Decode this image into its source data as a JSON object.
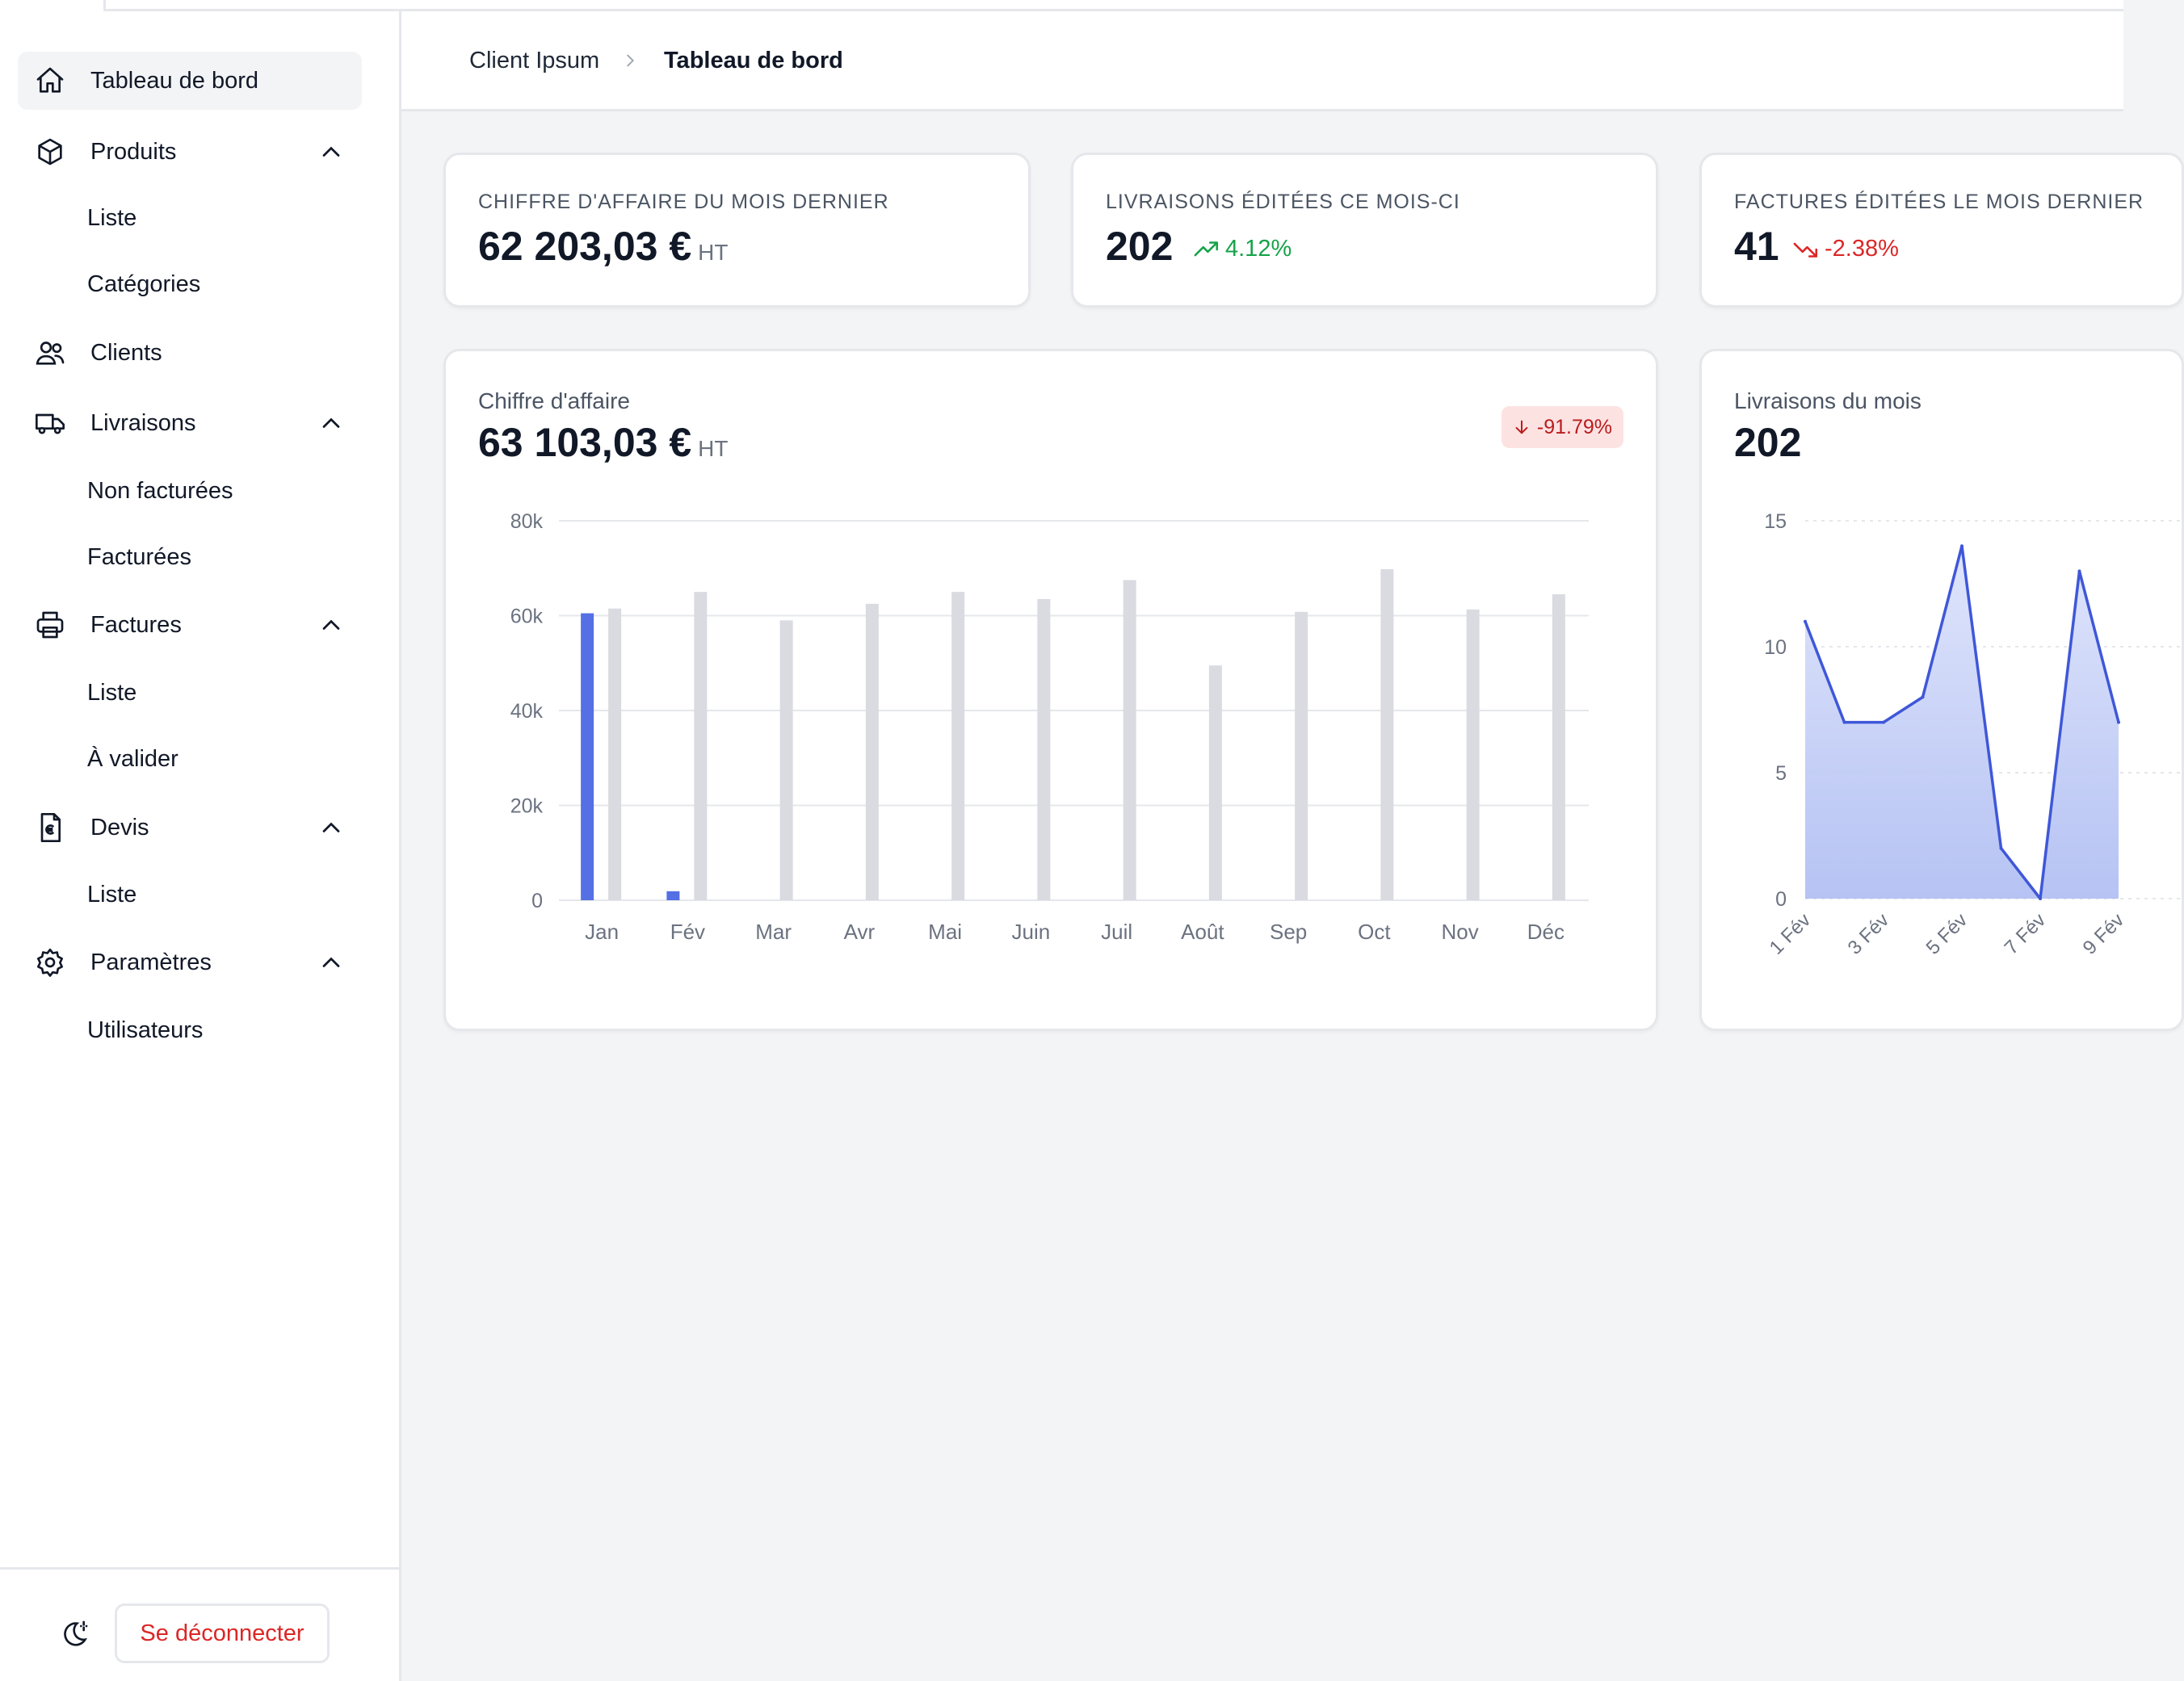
{
  "breadcrumb": {
    "client": "Client Ipsum",
    "current": "Tableau de bord"
  },
  "sidebar": {
    "dashboard": "Tableau de bord",
    "produits": {
      "label": "Produits",
      "items": [
        "Liste",
        "Catégories"
      ]
    },
    "clients": "Clients",
    "livraisons": {
      "label": "Livraisons",
      "items": [
        "Non facturées",
        "Facturées"
      ]
    },
    "factures": {
      "label": "Factures",
      "items": [
        "Liste",
        "À valider"
      ]
    },
    "devis": {
      "label": "Devis",
      "items": [
        "Liste"
      ]
    },
    "parametres": {
      "label": "Paramètres",
      "items": [
        "Utilisateurs"
      ]
    },
    "logout": "Se déconnecter"
  },
  "stats": [
    {
      "title": "CHIFFRE D'AFFAIRE DU MOIS DERNIER",
      "value": "62 203,03 €",
      "unit": "HT"
    },
    {
      "title": "LIVRAISONS ÉDITÉES CE MOIS-CI",
      "value": "202",
      "trend": "4.12%",
      "direction": "up"
    },
    {
      "title": "FACTURES ÉDITÉES LE MOIS DERNIER",
      "value": "41",
      "trend": "-2.38%",
      "direction": "down"
    }
  ],
  "revenue_card": {
    "title": "Chiffre d'affaire",
    "value": "63 103,03 €",
    "unit": "HT",
    "badge": "-91.79%"
  },
  "deliveries_card": {
    "title": "Livraisons du mois",
    "value": "202"
  },
  "colors": {
    "primary": "#5470e4",
    "secondary_bar": "#d9dbe1",
    "up": "#16a34a",
    "down": "#dc2626"
  },
  "chart_data": [
    {
      "type": "bar",
      "title": "Chiffre d'affaire",
      "categories": [
        "Jan",
        "Fév",
        "Mar",
        "Avr",
        "Mai",
        "Juin",
        "Juil",
        "Août",
        "Sep",
        "Oct",
        "Nov",
        "Déc"
      ],
      "ylim": [
        0,
        80000
      ],
      "yticks": [
        0,
        20000,
        40000,
        60000,
        80000
      ],
      "ytick_labels": [
        "0",
        "20k",
        "40k",
        "60k",
        "80k"
      ],
      "series": [
        {
          "values": [
            60500,
            1900,
            null,
            null,
            null,
            null,
            null,
            null,
            null,
            null,
            null,
            null
          ]
        },
        {
          "values": [
            61500,
            65000,
            59000,
            62500,
            65000,
            63500,
            67500,
            49500,
            60800,
            69800,
            61300,
            64500
          ]
        }
      ],
      "grid": true
    },
    {
      "type": "area",
      "title": "Livraisons du mois",
      "x": [
        "1 Fév",
        "2 Fév",
        "3 Fév",
        "4 Fév",
        "5 Fév",
        "6 Fév",
        "7 Fév",
        "8 Fév",
        "9 Fév"
      ],
      "xtick_labels": [
        "1 Fév",
        "3 Fév",
        "5 Fév",
        "7 Fév",
        "9 Fév"
      ],
      "ylim": [
        0,
        15
      ],
      "yticks": [
        0,
        5,
        10,
        15
      ],
      "series": [
        {
          "values": [
            11,
            7,
            7,
            8,
            14,
            2,
            0,
            13,
            7
          ]
        }
      ],
      "grid": true
    }
  ]
}
